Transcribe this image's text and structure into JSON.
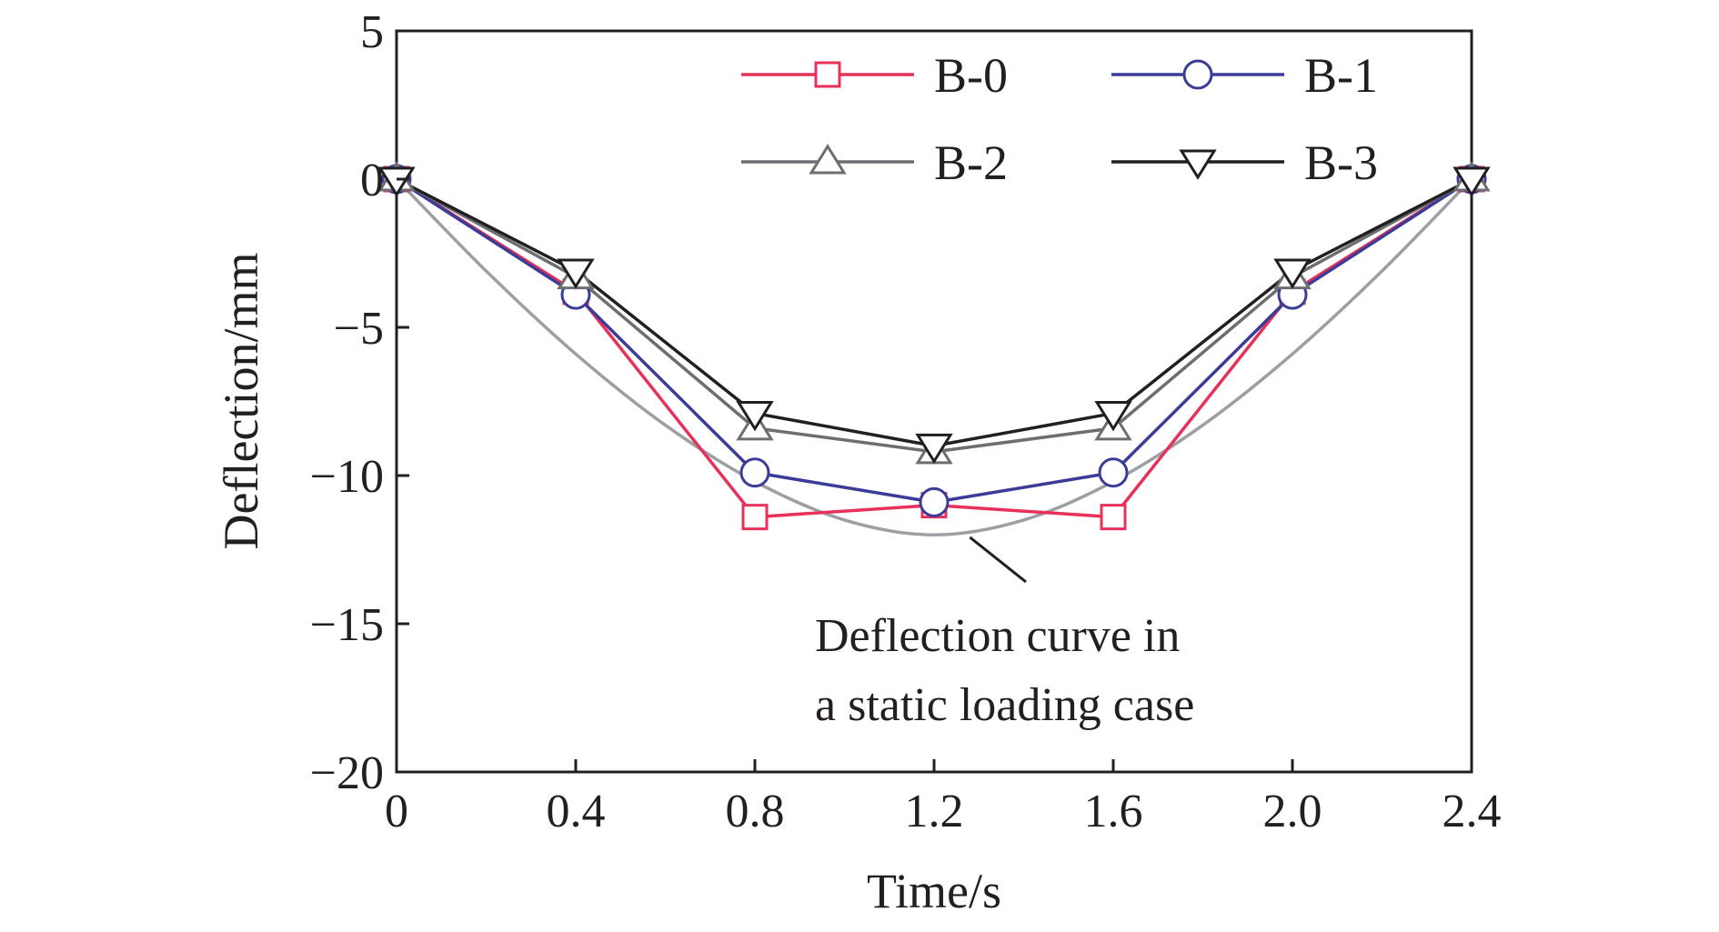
{
  "chart_data": {
    "type": "line",
    "title": "",
    "xlabel": "Time/s",
    "ylabel": "Deflection/mm",
    "xlim": [
      0,
      2.4
    ],
    "ylim": [
      -20,
      5
    ],
    "x_ticks": [
      0,
      0.4,
      0.8,
      1.2,
      1.6,
      2.0,
      2.4
    ],
    "x_tick_labels": [
      "0",
      "0.4",
      "0.8",
      "1.2",
      "1.6",
      "2.0",
      "2.4"
    ],
    "y_ticks": [
      5,
      0,
      -5,
      -10,
      -15,
      -20
    ],
    "y_tick_labels": [
      "5",
      "0",
      "−5",
      "−10",
      "−15",
      "−20"
    ],
    "grid": false,
    "legend_position": "top",
    "x": [
      0,
      0.4,
      0.8,
      1.2,
      1.6,
      2.0,
      2.4
    ],
    "series": [
      {
        "name": "B-0",
        "marker": "square",
        "color": "#e8315a",
        "values": [
          0,
          -3.8,
          -11.4,
          -11.0,
          -11.4,
          -3.8,
          0
        ]
      },
      {
        "name": "B-1",
        "marker": "circle",
        "color": "#3b3c98",
        "values": [
          0,
          -3.9,
          -9.9,
          -10.9,
          -9.9,
          -3.9,
          0
        ]
      },
      {
        "name": "B-2",
        "marker": "triangle-up",
        "color": "#6d6e71",
        "values": [
          0,
          -3.3,
          -8.4,
          -9.2,
          -8.4,
          -3.3,
          0
        ]
      },
      {
        "name": "B-3",
        "marker": "triangle-down",
        "color": "#231f20",
        "values": [
          0,
          -3.1,
          -7.9,
          -9.0,
          -7.9,
          -3.1,
          0
        ]
      }
    ],
    "reference_curve": {
      "color": "#9d9fa2",
      "x": [
        0,
        0.2,
        0.4,
        0.6,
        0.8,
        1.0,
        1.2,
        1.4,
        1.6,
        1.8,
        2.0,
        2.2,
        2.4
      ],
      "values": [
        0,
        -3.1,
        -5.9,
        -8.3,
        -10.2,
        -11.5,
        -12.0,
        -11.5,
        -10.2,
        -8.3,
        -5.9,
        -3.1,
        0
      ]
    },
    "annotation": {
      "lines": [
        "Deflection curve in",
        "a static loading case"
      ],
      "pointer_x": 1.28,
      "pointer_y": -11.9
    }
  }
}
